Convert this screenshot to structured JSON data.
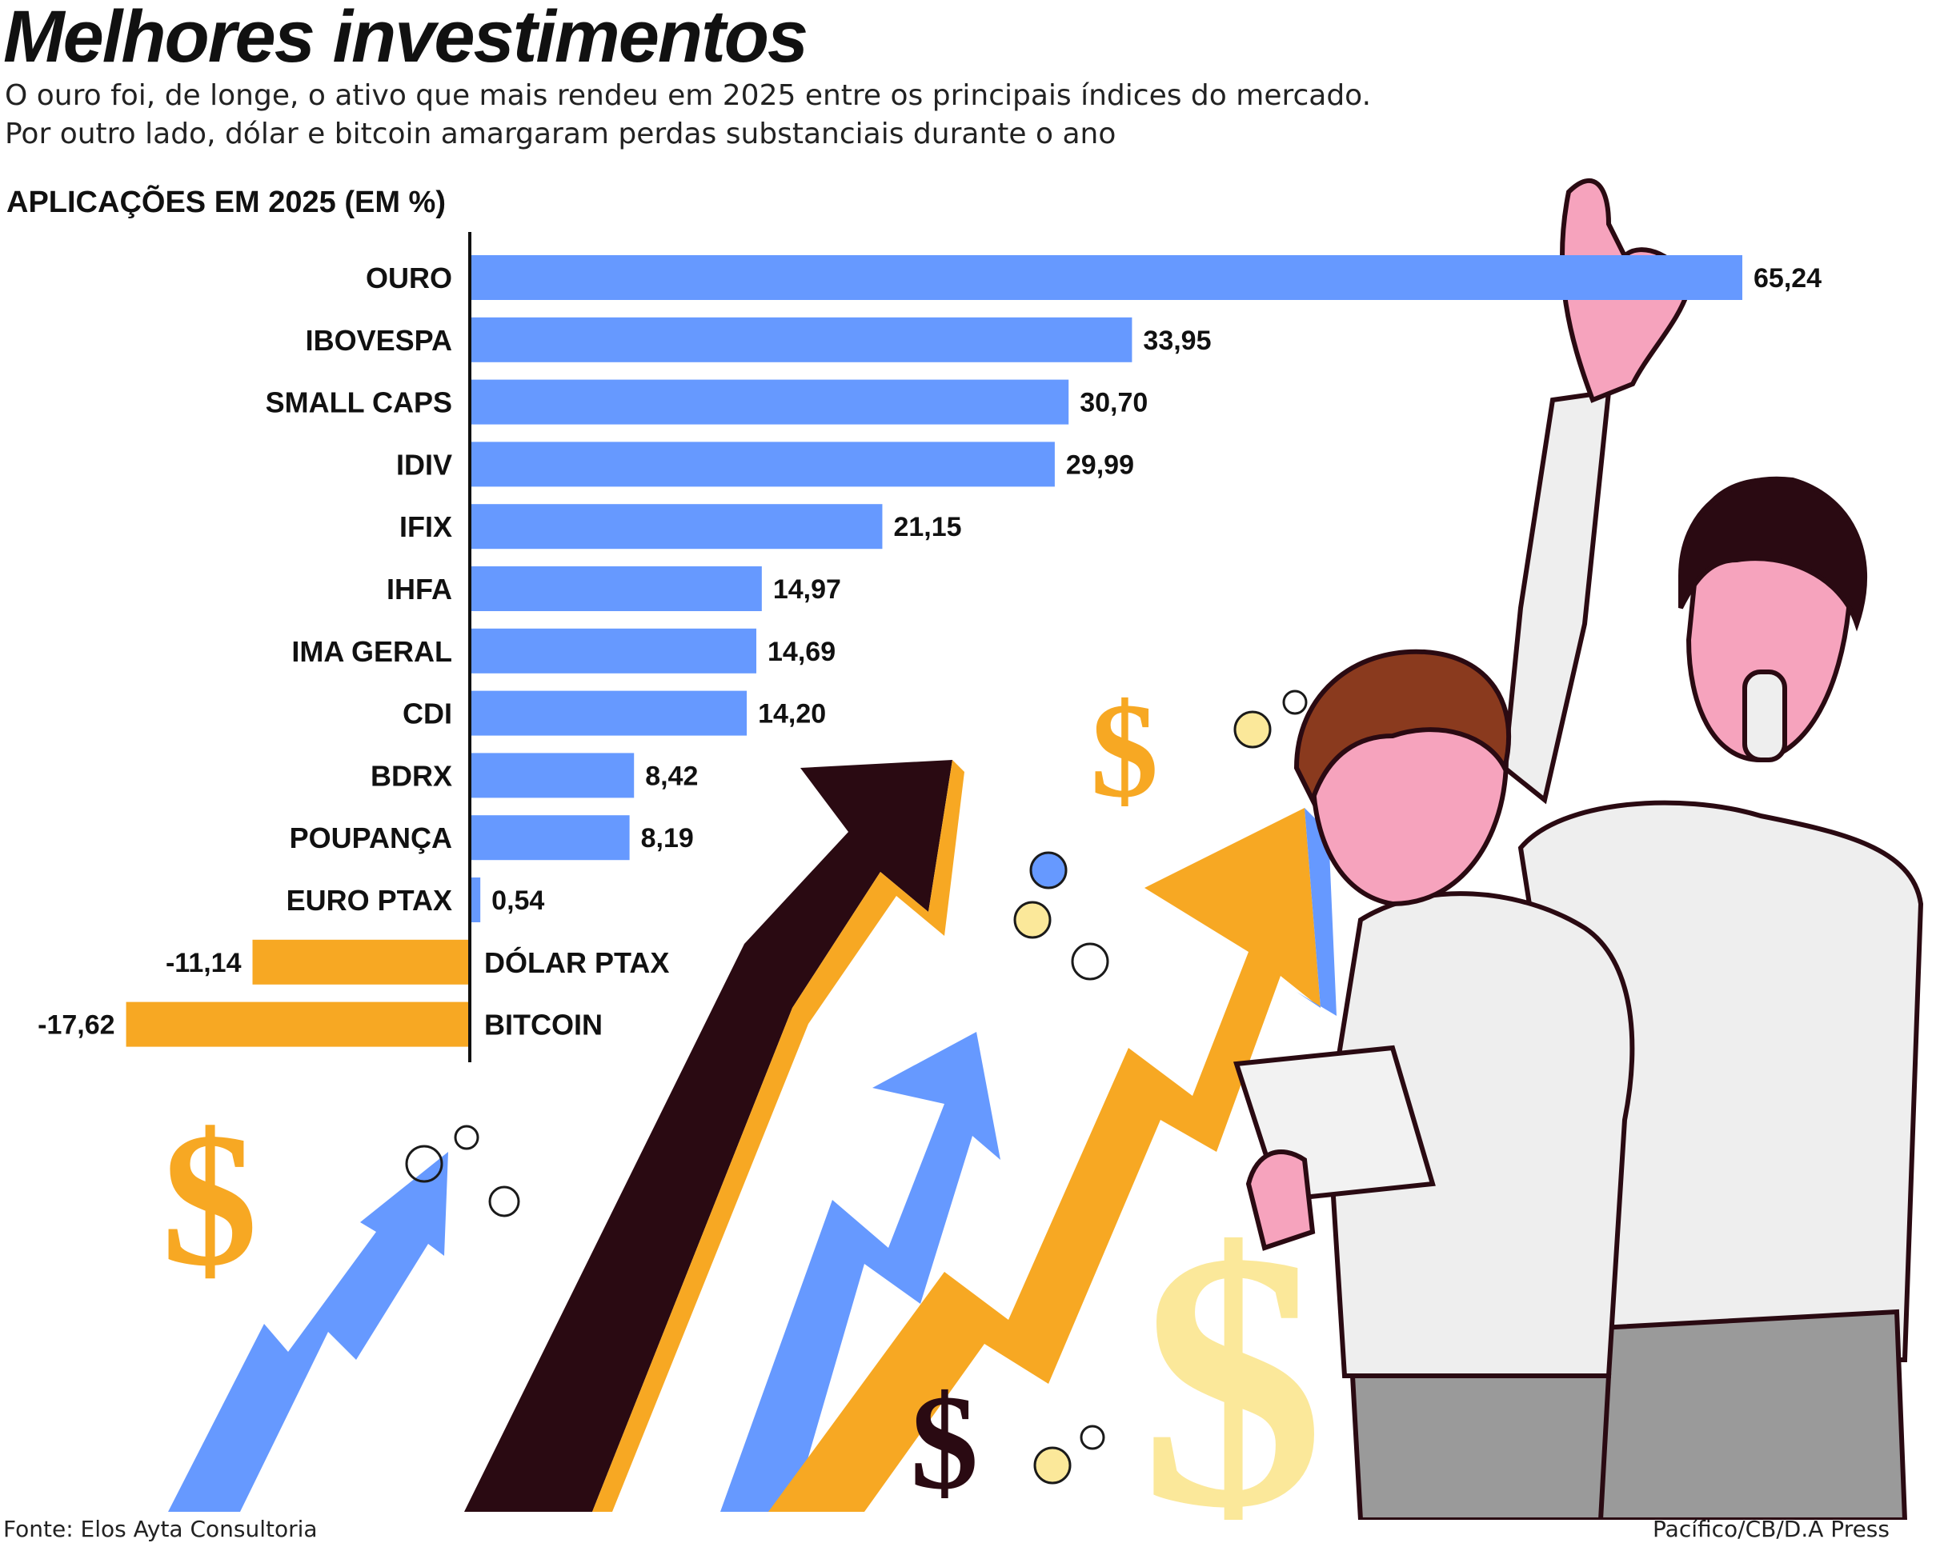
{
  "header": {
    "title": "Melhores investimentos",
    "subtitle_line1": "O ouro foi, de longe, o ativo que mais rendeu em 2025 entre os principais índices do mercado.",
    "subtitle_line2": "Por outro lado, dólar e bitcoin amargaram perdas substanciais durante o ano",
    "section_label": "APLICAÇÕES EM 2025 (EM %)"
  },
  "chart_data": {
    "type": "bar",
    "orientation": "horizontal",
    "title": "APLICAÇÕES EM 2025 (EM %)",
    "categories": [
      "OURO",
      "IBOVESPA",
      "SMALL CAPS",
      "IDIV",
      "IFIX",
      "IHFA",
      "IMA GERAL",
      "CDI",
      "BDRX",
      "POUPANÇA",
      "EURO PTAX",
      "DÓLAR PTAX",
      "BITCOIN"
    ],
    "values": [
      65.24,
      33.95,
      30.7,
      29.99,
      21.15,
      14.97,
      14.69,
      14.2,
      8.42,
      8.19,
      0.54,
      -11.14,
      -17.62
    ],
    "value_labels": [
      "65,24",
      "33,95",
      "30,70",
      "29,99",
      "21,15",
      "14,97",
      "14,69",
      "14,20",
      "8,42",
      "8,19",
      "0,54",
      "-11,14",
      "-17,62"
    ],
    "xlim": [
      -17.62,
      65.24
    ],
    "grid": false,
    "legend": "none",
    "colors": {
      "positive": "#6699ff",
      "negative": "#f7a823"
    }
  },
  "illustration": {
    "dollar_signs": [
      "$",
      "$",
      "$",
      "$"
    ],
    "colors": {
      "blue": "#6699ff",
      "orange": "#f7a823",
      "dark": "#2a0a12",
      "yellow": "#fbe89a",
      "skin": "#f6a3bd"
    }
  },
  "footer": {
    "source": "Fonte: Elos Ayta Consultoria",
    "credit": "Pacífico/CB/D.A Press"
  }
}
